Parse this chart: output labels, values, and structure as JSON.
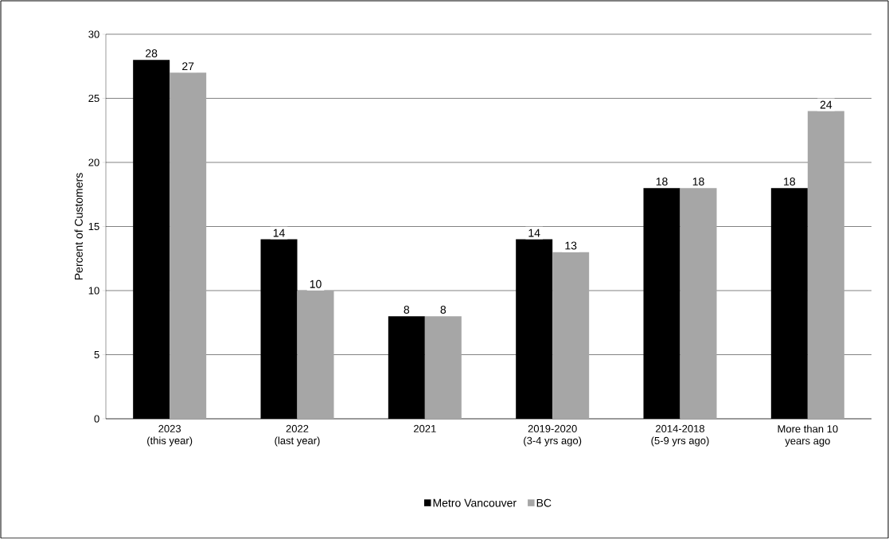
{
  "chart_data": {
    "type": "bar",
    "categories": [
      "2023\n(this year)",
      "2022\n(last year)",
      "2021",
      "2019-2020\n(3-4 yrs ago)",
      "2014-2018\n(5-9 yrs ago)",
      "More than 10\nyears ago"
    ],
    "ylabel": "Percent of Customers",
    "series": [
      {
        "name": "Metro Vancouver",
        "color": "#000000",
        "values": [
          28,
          14,
          8,
          14,
          18,
          18
        ]
      },
      {
        "name": "BC",
        "color": "#a6a6a6",
        "values": [
          27,
          10,
          8,
          13,
          18,
          24
        ]
      }
    ],
    "ylim": [
      0,
      30
    ],
    "yticks": [
      0,
      5,
      10,
      15,
      20,
      25,
      30
    ],
    "grid": "y",
    "legend": "bottom",
    "data_labels": true
  }
}
